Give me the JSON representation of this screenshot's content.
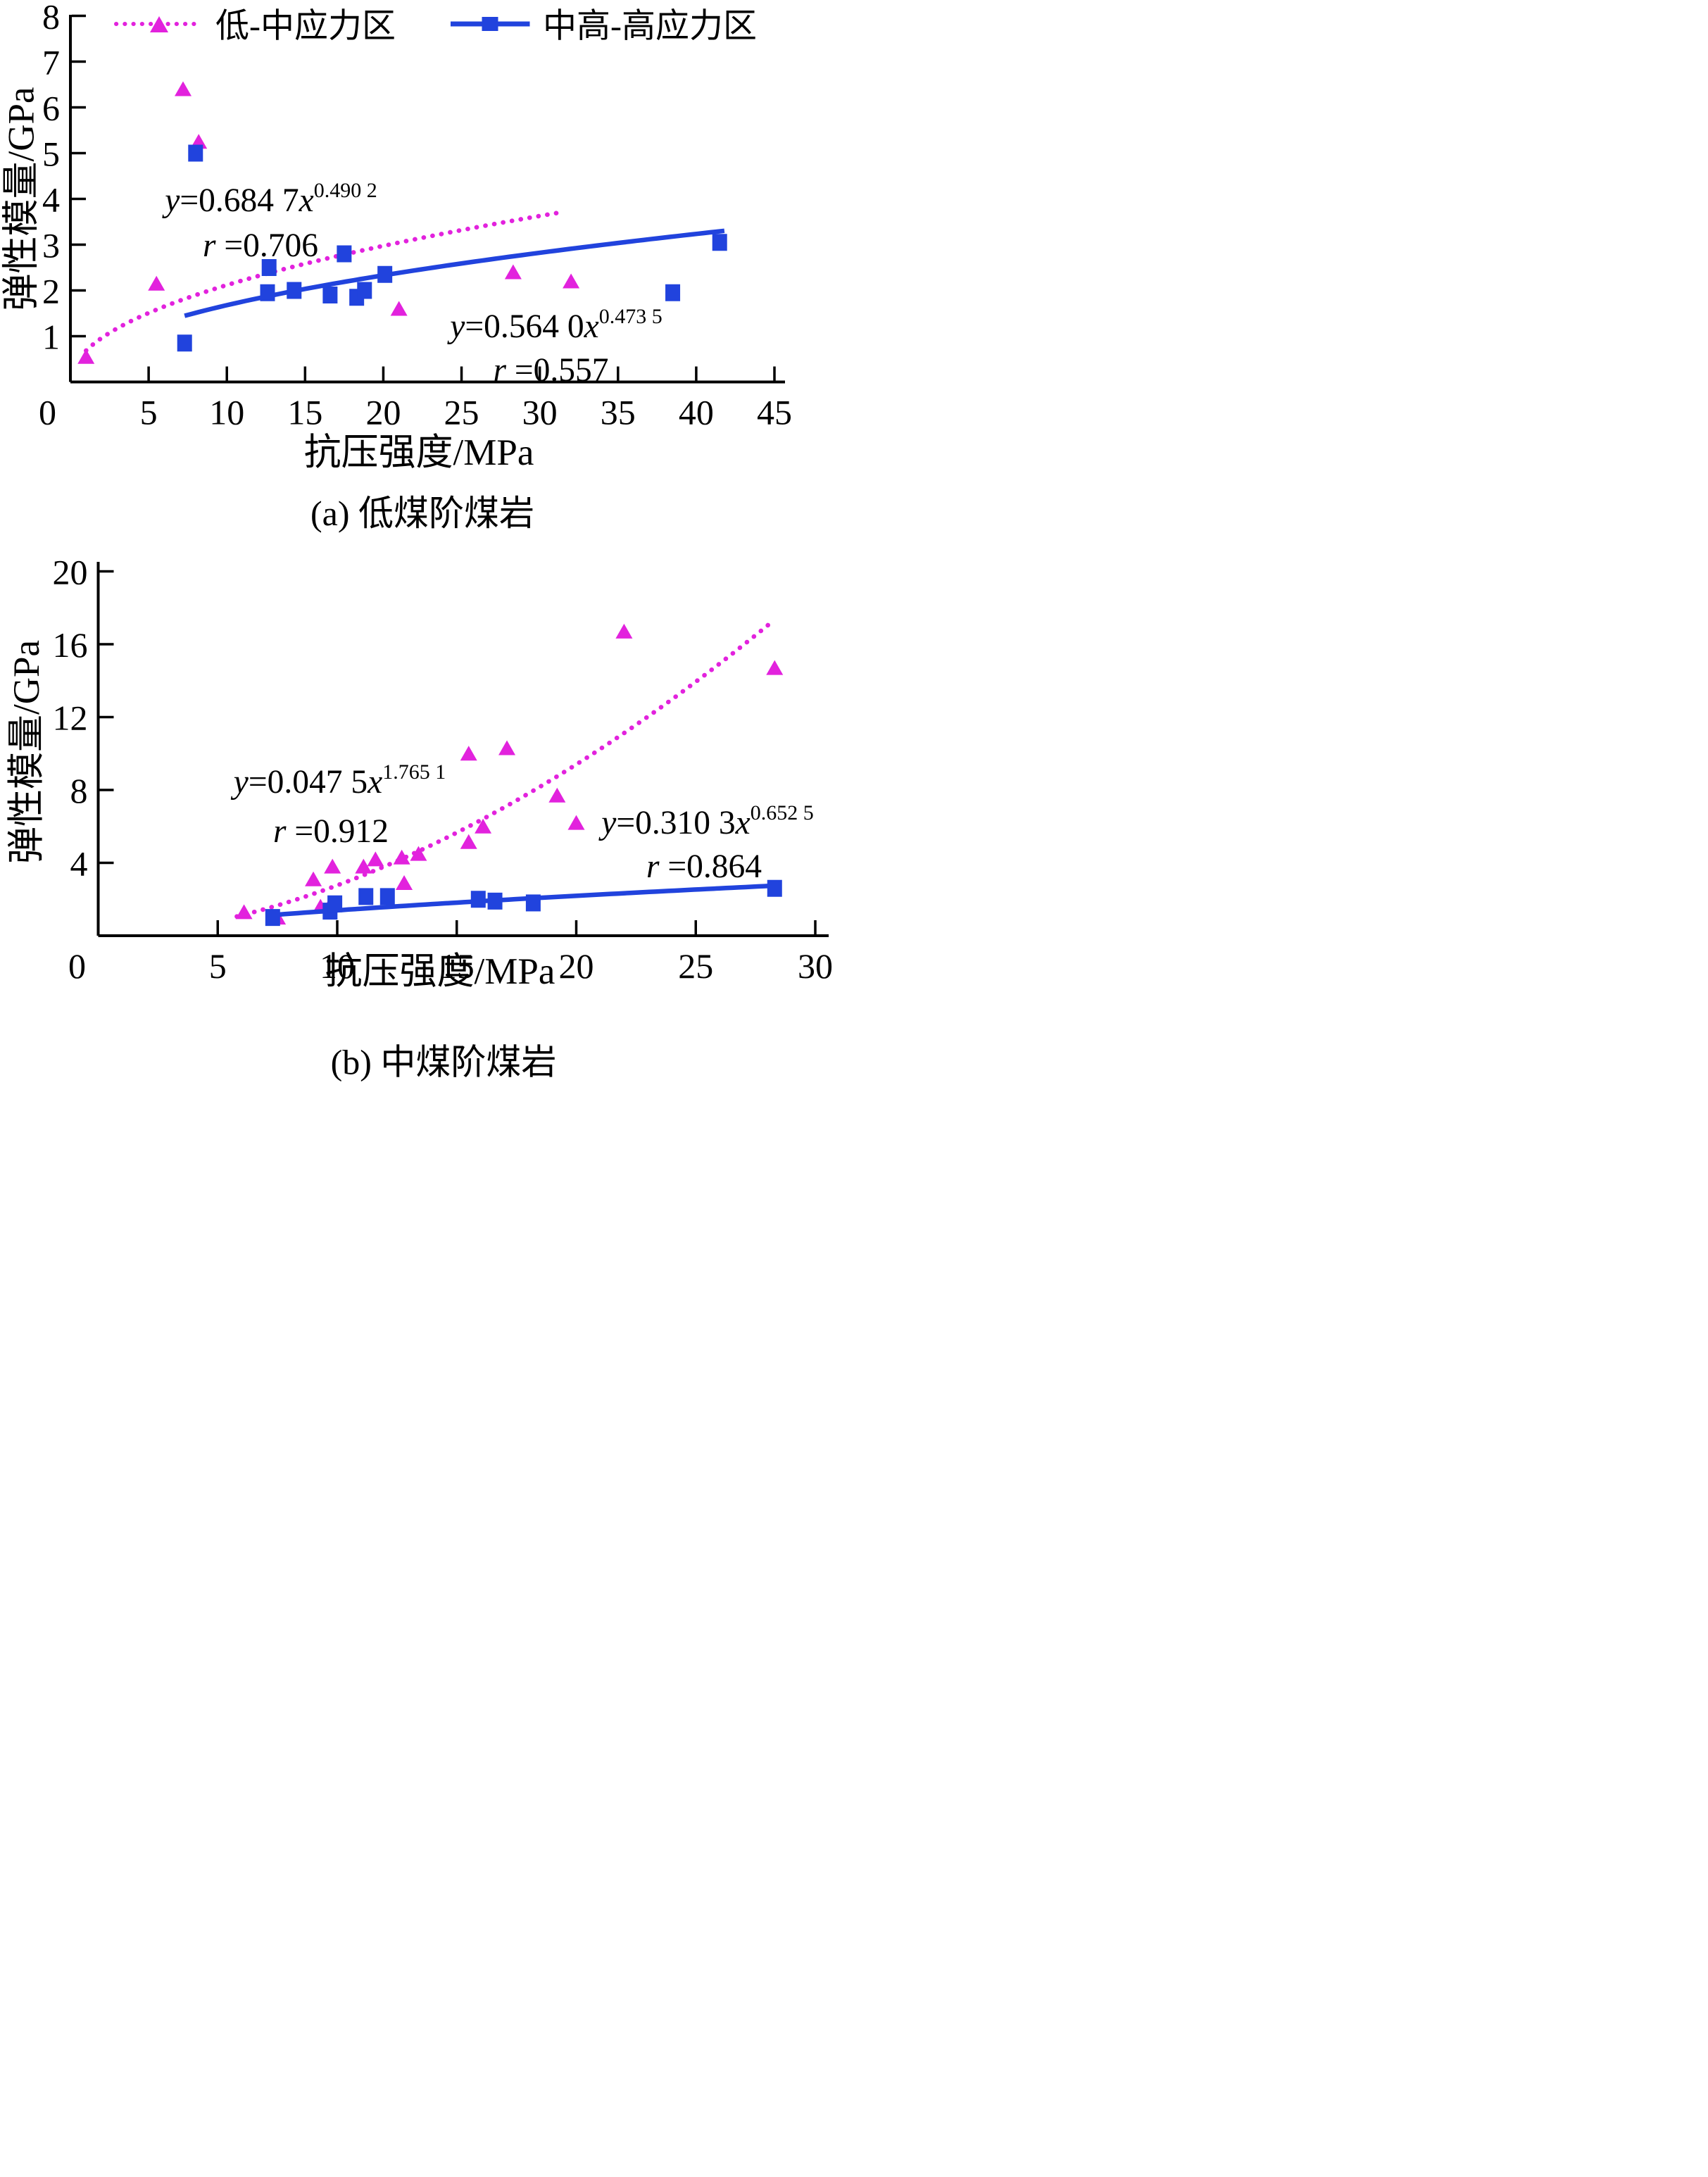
{
  "colors": {
    "series1": "#e222dd",
    "series2": "#2143dd",
    "axis": "#000000"
  },
  "legend": [
    {
      "label": "低-中应力区",
      "marker": "triangle",
      "line": "dotted"
    },
    {
      "label": "中高-高应力区",
      "marker": "square",
      "line": "solid"
    }
  ],
  "chart_data": [
    {
      "id": "a",
      "type": "scatter",
      "title": "(a)  低煤阶煤岩",
      "xlabel": "抗压强度/MPa",
      "ylabel": "弹性模量/GPa",
      "xlim": [
        0,
        45
      ],
      "ylim": [
        0,
        8
      ],
      "x_ticks": [
        5,
        10,
        15,
        20,
        25,
        30,
        35,
        40,
        45
      ],
      "y_ticks": [
        1,
        2,
        3,
        4,
        5,
        6,
        7,
        8
      ],
      "corner_label": "0",
      "grid": false,
      "legend_position": "top",
      "series": [
        {
          "name": "低-中应力区",
          "marker": "triangle",
          "color_key": "series1",
          "line": "dotted",
          "fit": {
            "coef": 0.6847,
            "exp": 0.4902,
            "x_range": [
              1.0,
              31.6
            ]
          },
          "points": [
            [
              1.0,
              0.55
            ],
            [
              5.5,
              2.15
            ],
            [
              7.2,
              6.4
            ],
            [
              8.2,
              5.25
            ],
            [
              21.0,
              1.6
            ],
            [
              28.3,
              2.4
            ],
            [
              32.0,
              2.2
            ]
          ]
        },
        {
          "name": "中高-高应力区",
          "marker": "square",
          "color_key": "series2",
          "line": "solid",
          "fit": {
            "coef": 0.564,
            "exp": 0.4735,
            "x_range": [
              7.3,
              41.8
            ]
          },
          "points": [
            [
              7.3,
              0.85
            ],
            [
              8.0,
              5.0
            ],
            [
              12.6,
              1.95
            ],
            [
              12.7,
              2.5
            ],
            [
              14.3,
              2.0
            ],
            [
              16.6,
              1.9
            ],
            [
              17.5,
              2.8
            ],
            [
              18.3,
              1.85
            ],
            [
              18.8,
              2.0
            ],
            [
              20.1,
              2.35
            ],
            [
              38.5,
              1.95
            ],
            [
              41.5,
              3.05
            ]
          ]
        }
      ],
      "equations": [
        {
          "y": "y",
          "eq": "=0.684 7",
          "x": "x",
          "exp": "0.490 2",
          "r": "r ",
          "req": "=0.706"
        },
        {
          "y": "y",
          "eq": "=0.564 0",
          "x": "x",
          "exp": "0.473 5",
          "r": "r ",
          "req": "=0.557"
        }
      ]
    },
    {
      "id": "b",
      "type": "scatter",
      "title": "(b)  中煤阶煤岩",
      "xlabel": "抗压强度/MPa",
      "ylabel": "弹性模量/GPa",
      "xlim": [
        0,
        30
      ],
      "ylim": [
        0,
        20
      ],
      "x_ticks": [
        5,
        10,
        15,
        20,
        25,
        30
      ],
      "y_ticks": [
        4,
        8,
        12,
        16,
        20
      ],
      "corner_label": "0",
      "grid": false,
      "legend_position": "none",
      "series": [
        {
          "name": "低-中应力区",
          "marker": "triangle",
          "color_key": "series1",
          "line": "dotted",
          "fit": {
            "coef": 0.0475,
            "exp": 1.7651,
            "x_range": [
              5.8,
              28.2
            ]
          },
          "points": [
            [
              6.1,
              1.3
            ],
            [
              7.5,
              1.0
            ],
            [
              9.0,
              3.1
            ],
            [
              9.3,
              1.6
            ],
            [
              9.7,
              1.7
            ],
            [
              9.8,
              3.8
            ],
            [
              11.1,
              3.8
            ],
            [
              11.6,
              4.2
            ],
            [
              12.7,
              4.3
            ],
            [
              13.4,
              4.5
            ],
            [
              12.8,
              2.9
            ],
            [
              15.5,
              5.15
            ],
            [
              16.1,
              6.0
            ],
            [
              15.5,
              10.0
            ],
            [
              17.1,
              10.3
            ],
            [
              19.2,
              7.7
            ],
            [
              20.0,
              6.2
            ],
            [
              22.0,
              16.7
            ],
            [
              28.3,
              14.7
            ]
          ]
        },
        {
          "name": "中高-高应力区",
          "marker": "square",
          "color_key": "series2",
          "line": "solid",
          "fit": {
            "coef": 0.3103,
            "exp": 0.6525,
            "x_range": [
              7.0,
              28.4
            ]
          },
          "points": [
            [
              7.3,
              1.0
            ],
            [
              9.7,
              1.35
            ],
            [
              9.9,
              1.75
            ],
            [
              11.2,
              2.15
            ],
            [
              12.1,
              2.15
            ],
            [
              15.9,
              2.0
            ],
            [
              16.6,
              1.9
            ],
            [
              18.2,
              1.8
            ],
            [
              28.3,
              2.6
            ]
          ]
        }
      ],
      "equations": [
        {
          "y": "y",
          "eq": "=0.047 5",
          "x": "x",
          "exp": "1.765 1",
          "r": "r ",
          "req": "=0.912"
        },
        {
          "y": "y",
          "eq": "=0.310 3",
          "x": "x",
          "exp": "0.652 5",
          "r": "r ",
          "req": "=0.864"
        }
      ]
    }
  ]
}
